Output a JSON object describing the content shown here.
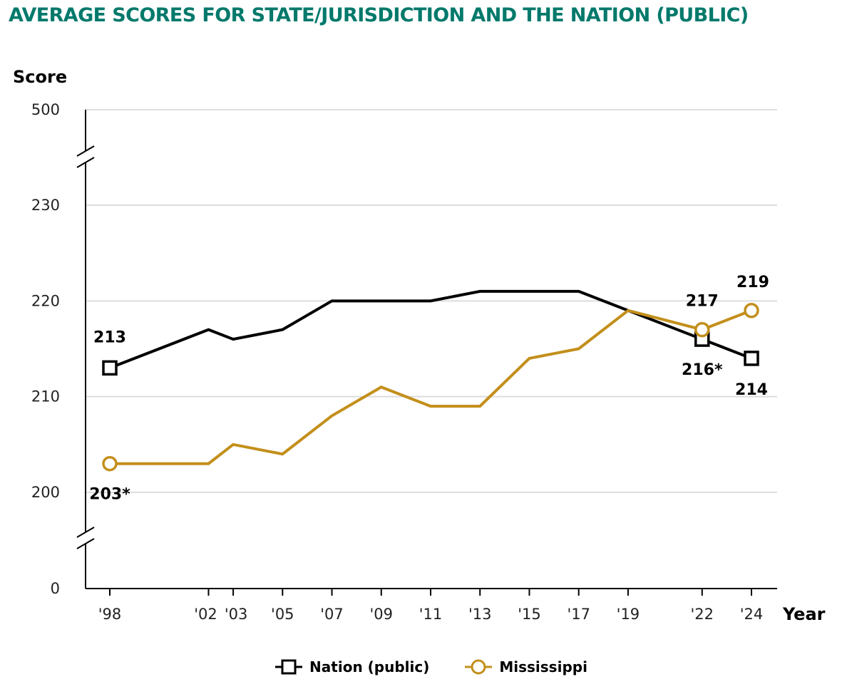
{
  "colors": {
    "title": "#00796b",
    "nation": "#000000",
    "state": "#c38f1b",
    "grid": "#dddddd",
    "axis": "#000000"
  },
  "chart_data": {
    "type": "line",
    "title": "AVERAGE SCORES FOR STATE/JURISDICTION AND THE NATION (PUBLIC)",
    "ylabel": "Score",
    "xlabel": "Year",
    "y_ticks": [
      0,
      200,
      210,
      220,
      230,
      500
    ],
    "y_axis_breaks": [
      0,
      500
    ],
    "ylim_detail": [
      200,
      230
    ],
    "grid": true,
    "legend_placement": "bottom-center",
    "categories": [
      "'98",
      "'02",
      "'03",
      "'05",
      "'07",
      "'09",
      "'11",
      "'13",
      "'15",
      "'17",
      "'19",
      "'22",
      "'24"
    ],
    "x": [
      1998,
      2002,
      2003,
      2005,
      2007,
      2009,
      2011,
      2013,
      2015,
      2017,
      2019,
      2022,
      2024
    ],
    "series": [
      {
        "name": "Nation (public)",
        "marker": "square",
        "color": "#000000",
        "values": [
          213,
          217,
          216,
          217,
          220,
          220,
          220,
          221,
          221,
          221,
          219,
          216,
          214
        ],
        "labels": {
          "0": "213",
          "11": "216*",
          "12": "214"
        }
      },
      {
        "name": "Mississippi",
        "marker": "circle",
        "color": "#c38f1b",
        "values": [
          203,
          203,
          205,
          204,
          208,
          211,
          209,
          209,
          214,
          215,
          219,
          217,
          219
        ],
        "labels": {
          "0": "203*",
          "11": "217",
          "12": "219"
        }
      }
    ]
  }
}
